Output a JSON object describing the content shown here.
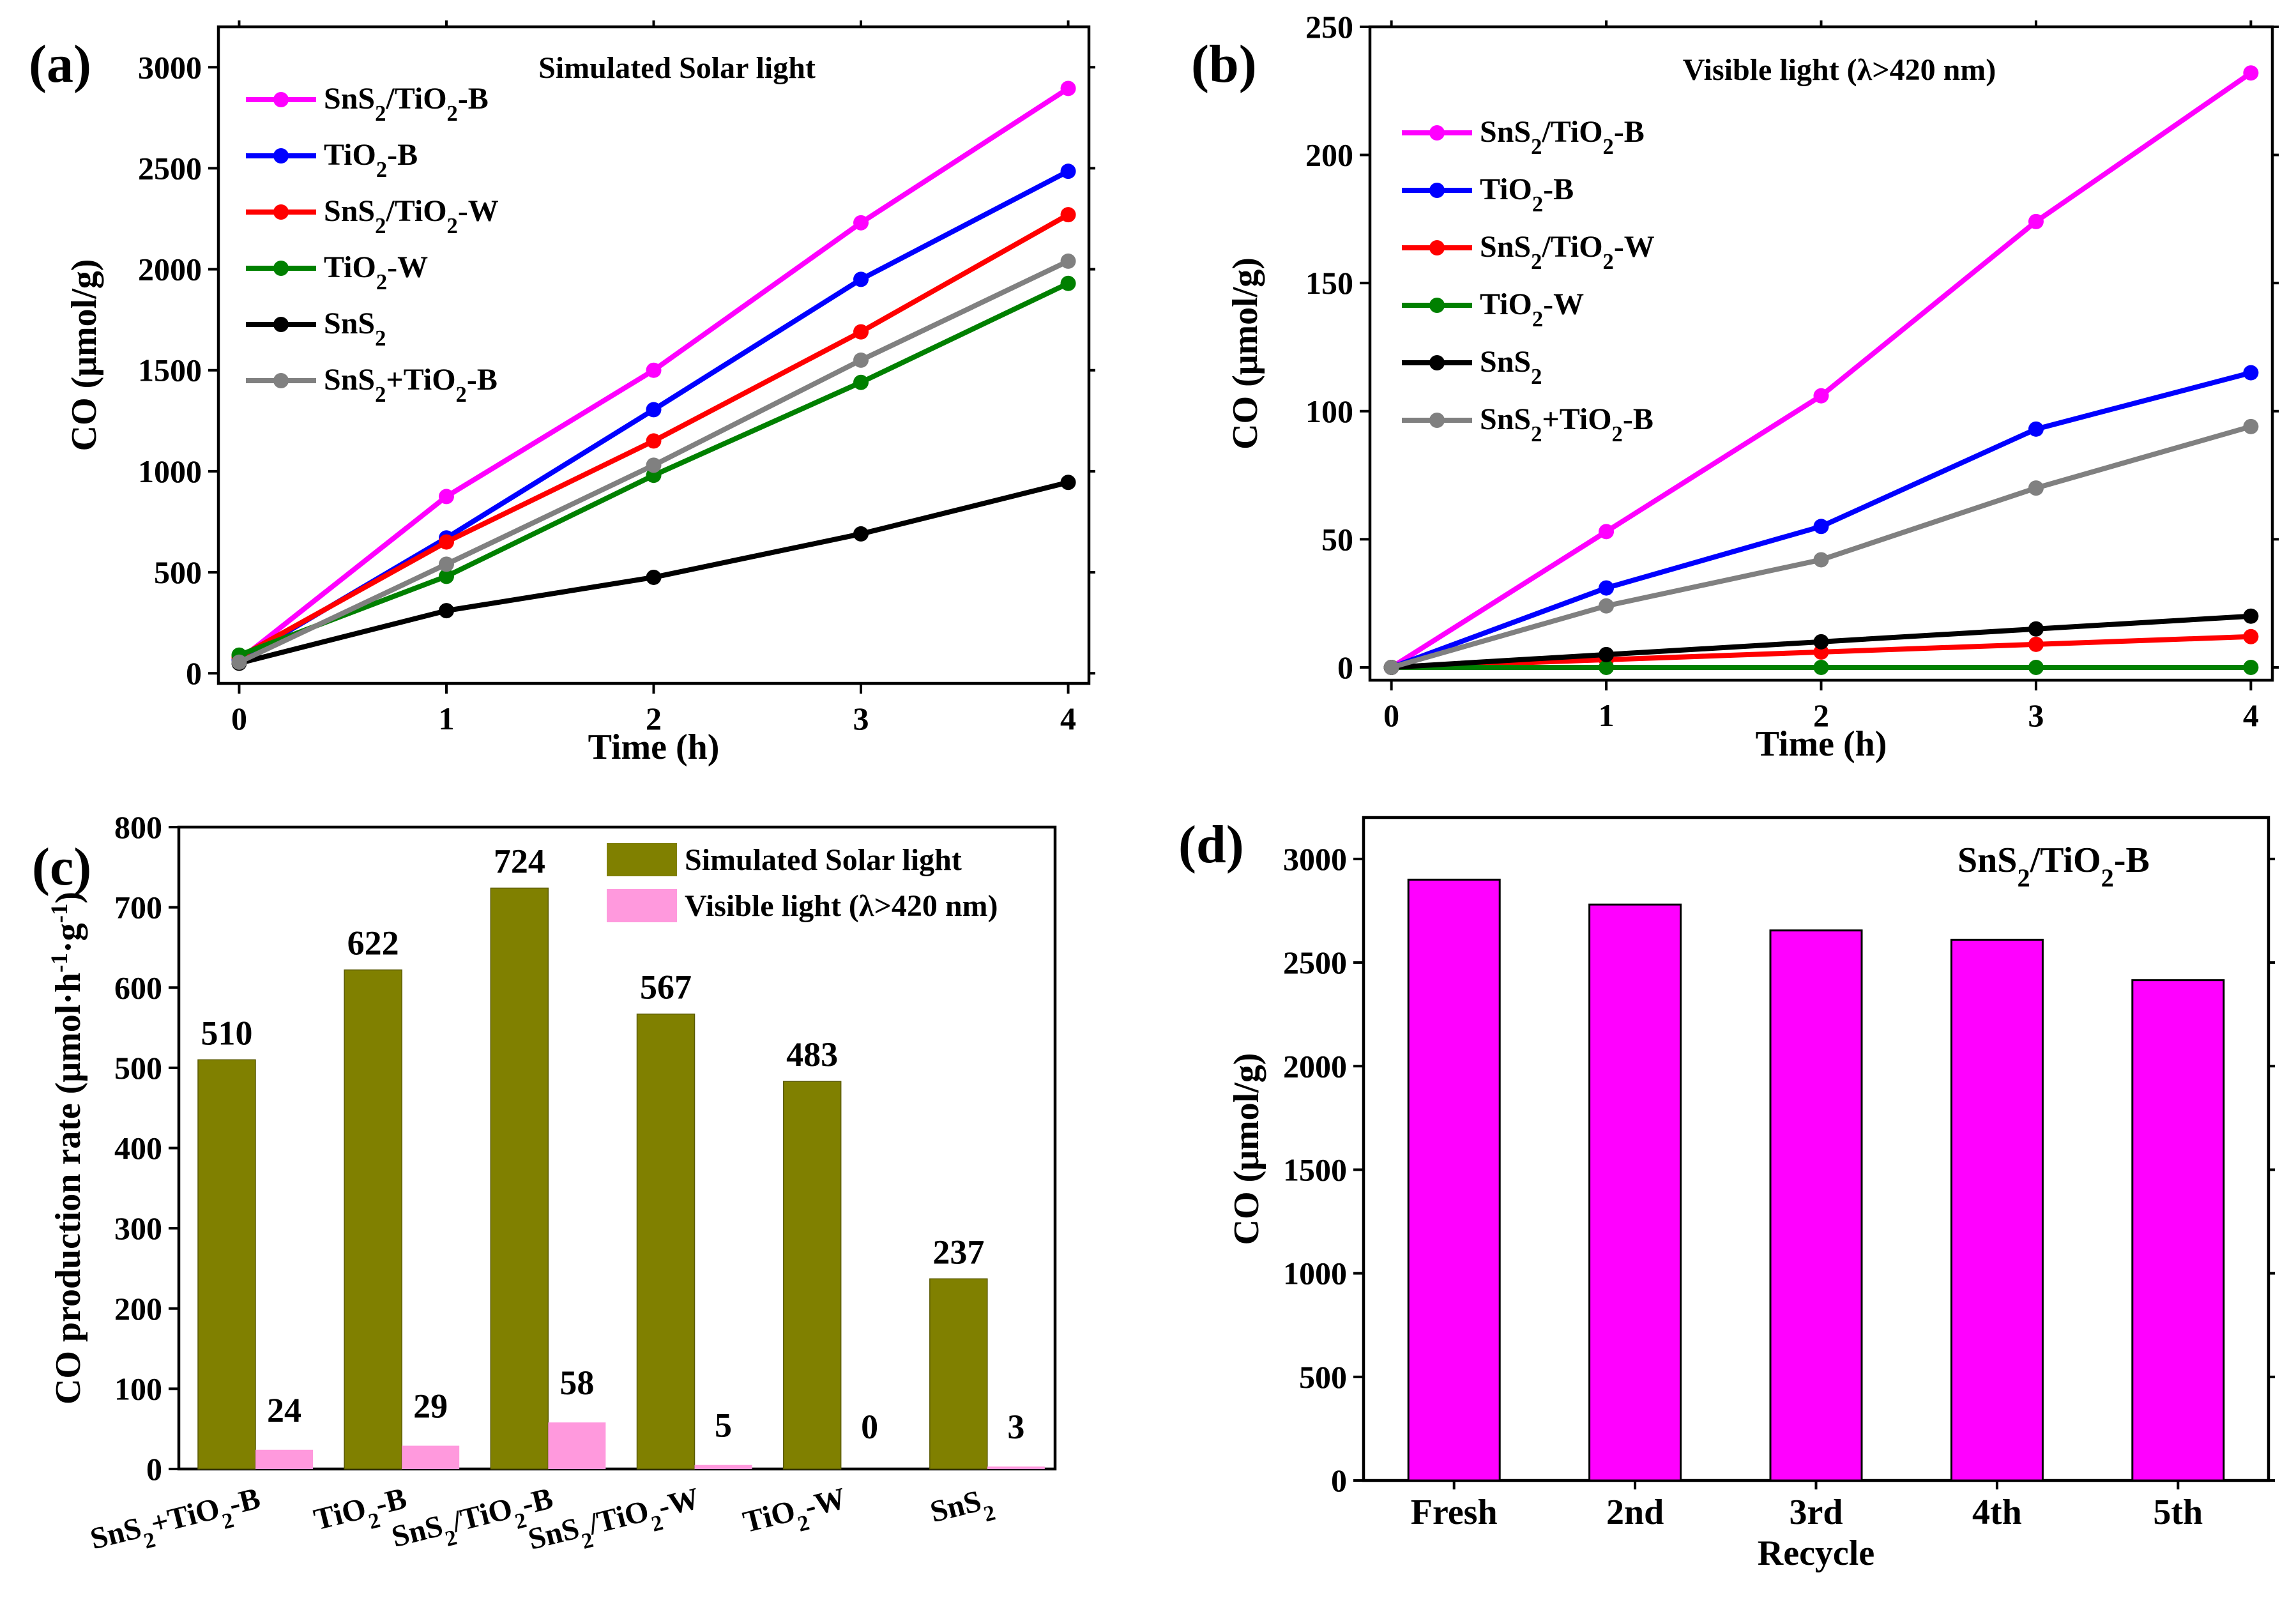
{
  "chart_data": [
    {
      "id": "a",
      "type": "line",
      "panel_label": "(a)",
      "title": "Simulated Solar light",
      "xlabel": "Time (h)",
      "ylabel": "CO (μmol/g)",
      "x": [
        0,
        1,
        2,
        3,
        4
      ],
      "xlim": [
        -0.1,
        4.1
      ],
      "ylim": [
        -50,
        3200
      ],
      "xticks": [
        0,
        1,
        2,
        3,
        4
      ],
      "yticks": [
        0,
        500,
        1000,
        1500,
        2000,
        2500,
        3000
      ],
      "legend": "top-left",
      "series": [
        {
          "name": "SnS2/TiO2-B",
          "label_parts": [
            [
              "SnS",
              ""
            ],
            [
              "2",
              "sub"
            ],
            [
              "/TiO",
              ""
            ],
            [
              "2",
              "sub"
            ],
            [
              "-B",
              ""
            ]
          ],
          "color": "#ff00ff",
          "values": [
            65,
            875,
            1500,
            2230,
            2895
          ]
        },
        {
          "name": "TiO2-B",
          "label_parts": [
            [
              "TiO",
              ""
            ],
            [
              "2",
              "sub"
            ],
            [
              "-B",
              ""
            ]
          ],
          "color": "#0000ff",
          "values": [
            65,
            670,
            1305,
            1950,
            2485
          ]
        },
        {
          "name": "SnS2/TiO2-W",
          "label_parts": [
            [
              "SnS",
              ""
            ],
            [
              "2",
              "sub"
            ],
            [
              "/TiO",
              ""
            ],
            [
              "2",
              "sub"
            ],
            [
              "-W",
              ""
            ]
          ],
          "color": "#ff0000",
          "values": [
            80,
            650,
            1150,
            1690,
            2270
          ]
        },
        {
          "name": "TiO2-W",
          "label_parts": [
            [
              "TiO",
              ""
            ],
            [
              "2",
              "sub"
            ],
            [
              "-W",
              ""
            ]
          ],
          "color": "#008000",
          "values": [
            90,
            480,
            980,
            1440,
            1930
          ]
        },
        {
          "name": "SnS2",
          "label_parts": [
            [
              "SnS",
              ""
            ],
            [
              "2",
              "sub"
            ]
          ],
          "color": "#000000",
          "values": [
            50,
            310,
            475,
            690,
            945
          ]
        },
        {
          "name": "SnS2+TiO2-B",
          "label_parts": [
            [
              "SnS",
              ""
            ],
            [
              "2",
              "sub"
            ],
            [
              "+TiO",
              ""
            ],
            [
              "2",
              "sub"
            ],
            [
              "-B",
              ""
            ]
          ],
          "color": "#808080",
          "values": [
            55,
            540,
            1030,
            1550,
            2040
          ]
        }
      ]
    },
    {
      "id": "b",
      "type": "line",
      "panel_label": "(b)",
      "title": "Visible light (λ>420 nm)",
      "xlabel": "Time (h)",
      "ylabel": "CO (μmol/g)",
      "x": [
        0,
        1,
        2,
        3,
        4
      ],
      "xlim": [
        -0.1,
        4.1
      ],
      "ylim": [
        -5,
        250
      ],
      "xticks": [
        0,
        1,
        2,
        3,
        4
      ],
      "yticks": [
        0,
        50,
        100,
        150,
        200,
        250
      ],
      "legend": "top-left",
      "series": [
        {
          "name": "SnS2/TiO2-B",
          "label_parts": [
            [
              "SnS",
              ""
            ],
            [
              "2",
              "sub"
            ],
            [
              "/TiO",
              ""
            ],
            [
              "2",
              "sub"
            ],
            [
              "-B",
              ""
            ]
          ],
          "color": "#ff00ff",
          "values": [
            0,
            53,
            106,
            174,
            232
          ]
        },
        {
          "name": "TiO2-B",
          "label_parts": [
            [
              "TiO",
              ""
            ],
            [
              "2",
              "sub"
            ],
            [
              "-B",
              ""
            ]
          ],
          "color": "#0000ff",
          "values": [
            0,
            31,
            55,
            93,
            115
          ]
        },
        {
          "name": "SnS2/TiO2-W",
          "label_parts": [
            [
              "SnS",
              ""
            ],
            [
              "2",
              "sub"
            ],
            [
              "/TiO",
              ""
            ],
            [
              "2",
              "sub"
            ],
            [
              "-W",
              ""
            ]
          ],
          "color": "#ff0000",
          "values": [
            0,
            3,
            6,
            9,
            12
          ]
        },
        {
          "name": "TiO2-W",
          "label_parts": [
            [
              "TiO",
              ""
            ],
            [
              "2",
              "sub"
            ],
            [
              "-W",
              ""
            ]
          ],
          "color": "#008000",
          "values": [
            0,
            0,
            0,
            0,
            0
          ]
        },
        {
          "name": "SnS2",
          "label_parts": [
            [
              "SnS",
              ""
            ],
            [
              "2",
              "sub"
            ]
          ],
          "color": "#000000",
          "values": [
            0,
            5,
            10,
            15,
            20
          ]
        },
        {
          "name": "SnS2+TiO2-B",
          "label_parts": [
            [
              "SnS",
              ""
            ],
            [
              "2",
              "sub"
            ],
            [
              "+TiO",
              ""
            ],
            [
              "2",
              "sub"
            ],
            [
              "-B",
              ""
            ]
          ],
          "color": "#808080",
          "values": [
            0,
            24,
            42,
            70,
            94
          ]
        }
      ]
    },
    {
      "id": "c",
      "type": "bar",
      "panel_label": "(c)",
      "ylabel_parts": [
        [
          "CO production rate (μmol·h",
          ""
        ],
        [
          "-1",
          "sup"
        ],
        [
          "·g",
          ""
        ],
        [
          "-1",
          "sup"
        ],
        [
          ")",
          ""
        ]
      ],
      "ylim": [
        0,
        800
      ],
      "yticks": [
        0,
        100,
        200,
        300,
        400,
        500,
        600,
        700,
        800
      ],
      "legend": "top-right",
      "categories": [
        [
          [
            "SnS",
            ""
          ],
          [
            "2",
            "sub"
          ],
          [
            "+TiO",
            ""
          ],
          [
            "2",
            "sub"
          ],
          [
            "-B",
            ""
          ]
        ],
        [
          [
            "TiO",
            ""
          ],
          [
            "2",
            "sub"
          ],
          [
            "-B",
            ""
          ]
        ],
        [
          [
            "SnS",
            ""
          ],
          [
            "2",
            "sub"
          ],
          [
            "/TiO",
            ""
          ],
          [
            "2",
            "sub"
          ],
          [
            "-B",
            ""
          ]
        ],
        [
          [
            "SnS",
            ""
          ],
          [
            "2",
            "sub"
          ],
          [
            "/TiO",
            ""
          ],
          [
            "2",
            "sub"
          ],
          [
            "-W",
            ""
          ]
        ],
        [
          [
            "TiO",
            ""
          ],
          [
            "2",
            "sub"
          ],
          [
            "-W",
            ""
          ]
        ],
        [
          [
            "SnS",
            ""
          ],
          [
            "2",
            "sub"
          ]
        ]
      ],
      "series": [
        {
          "name": "Simulated Solar light",
          "color": "#808000",
          "values": [
            510,
            622,
            724,
            567,
            483,
            237
          ],
          "labels": [
            "510",
            "622",
            "724",
            "567",
            "483",
            "237"
          ]
        },
        {
          "name": "Visible light (λ>420 nm)",
          "color": "#ff99dd",
          "values": [
            24,
            29,
            58,
            5,
            0,
            3
          ],
          "labels": [
            "24",
            "29",
            "58",
            "5",
            "0",
            "3"
          ]
        }
      ]
    },
    {
      "id": "d",
      "type": "bar",
      "panel_label": "(d)",
      "title_parts": [
        [
          "SnS",
          ""
        ],
        [
          "2",
          "sub"
        ],
        [
          "/TiO",
          ""
        ],
        [
          "2",
          "sub"
        ],
        [
          "-B",
          ""
        ]
      ],
      "xlabel": "Recycle",
      "ylabel": "CO (μmol/g)",
      "ylim": [
        0,
        3200
      ],
      "yticks": [
        0,
        500,
        1000,
        1500,
        2000,
        2500,
        3000
      ],
      "categories": [
        "Fresh",
        "2nd",
        "3rd",
        "4th",
        "5th"
      ],
      "series": [
        {
          "name": "SnS2/TiO2-B",
          "color": "#ff00ff",
          "values": [
            2900,
            2780,
            2655,
            2610,
            2415
          ]
        }
      ]
    }
  ]
}
